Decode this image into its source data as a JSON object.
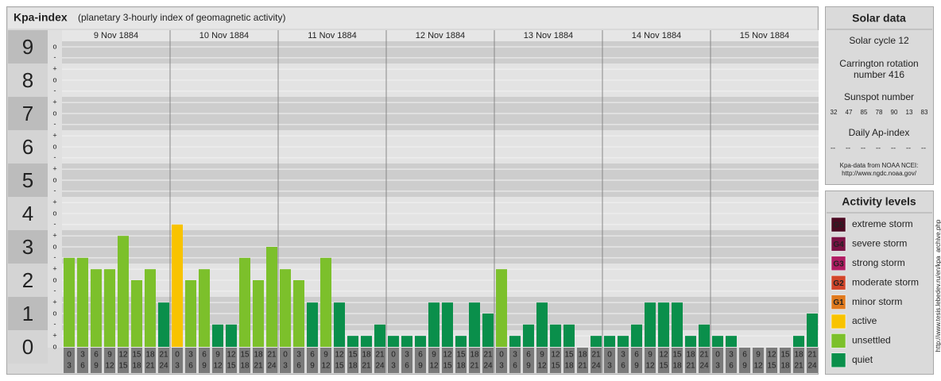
{
  "chart_data": {
    "type": "bar",
    "title": "Kpa-index",
    "subtitle": "(planetary 3-hourly index of geomagnetic activity)",
    "days": [
      "9 Nov 1884",
      "10 Nov 1884",
      "11 Nov 1884",
      "12 Nov 1884",
      "13 Nov 1884",
      "14 Nov 1884",
      "15 Nov 1884"
    ],
    "hours": [
      [
        0,
        3
      ],
      [
        3,
        6
      ],
      [
        6,
        9
      ],
      [
        9,
        12
      ],
      [
        12,
        15
      ],
      [
        15,
        18
      ],
      [
        18,
        21
      ],
      [
        21,
        24
      ]
    ],
    "values": [
      2.67,
      2.67,
      2.33,
      2.33,
      3.33,
      2,
      2.33,
      1.33,
      3.67,
      2,
      2.33,
      0.67,
      0.67,
      2.67,
      2,
      3,
      2.33,
      2,
      1.33,
      2.67,
      1.33,
      0.33,
      0.33,
      0.67,
      0.33,
      0.33,
      0.33,
      1.33,
      1.33,
      0.33,
      1.33,
      1,
      2.33,
      0.33,
      0.67,
      1.33,
      0.67,
      0.67,
      0,
      0.33,
      0.33,
      0.33,
      0.67,
      1.33,
      1.33,
      1.33,
      0.33,
      0.67,
      0.33,
      0.33,
      0,
      0,
      0,
      0,
      0.33,
      1
    ],
    "colors": [
      "#7cc02b",
      "#7cc02b",
      "#7cc02b",
      "#7cc02b",
      "#7cc02b",
      "#7cc02b",
      "#7cc02b",
      "#0a8f4b",
      "#f8c300",
      "#7cc02b",
      "#7cc02b",
      "#0a8f4b",
      "#0a8f4b",
      "#7cc02b",
      "#7cc02b",
      "#7cc02b",
      "#7cc02b",
      "#7cc02b",
      "#0a8f4b",
      "#7cc02b",
      "#0a8f4b",
      "#0a8f4b",
      "#0a8f4b",
      "#0a8f4b",
      "#0a8f4b",
      "#0a8f4b",
      "#0a8f4b",
      "#0a8f4b",
      "#0a8f4b",
      "#0a8f4b",
      "#0a8f4b",
      "#0a8f4b",
      "#7cc02b",
      "#0a8f4b",
      "#0a8f4b",
      "#0a8f4b",
      "#0a8f4b",
      "#0a8f4b",
      "#0a8f4b",
      "#0a8f4b",
      "#0a8f4b",
      "#0a8f4b",
      "#0a8f4b",
      "#0a8f4b",
      "#0a8f4b",
      "#0a8f4b",
      "#0a8f4b",
      "#0a8f4b",
      "#0a8f4b",
      "#0a8f4b",
      "#0a8f4b",
      "#0a8f4b",
      "#0a8f4b",
      "#0a8f4b",
      "#0a8f4b",
      "#0a8f4b"
    ],
    "ylim": [
      0,
      9.5
    ],
    "yticks": [
      0,
      1,
      2,
      3,
      4,
      5,
      6,
      7,
      8,
      9
    ],
    "yticks_minor": [
      {
        "value": 0,
        "label": "o"
      },
      {
        "value": 0.33,
        "label": "+"
      },
      {
        "value": 0.67,
        "label": "-"
      },
      {
        "value": 1,
        "label": "o"
      },
      {
        "value": 1.33,
        "label": "+"
      },
      {
        "value": 1.67,
        "label": "-"
      },
      {
        "value": 2,
        "label": "o"
      },
      {
        "value": 2.33,
        "label": "+"
      },
      {
        "value": 2.67,
        "label": "-"
      },
      {
        "value": 3,
        "label": "o"
      },
      {
        "value": 3.33,
        "label": "+"
      },
      {
        "value": 3.67,
        "label": "-"
      },
      {
        "value": 4,
        "label": "o"
      },
      {
        "value": 4.33,
        "label": "+"
      },
      {
        "value": 4.67,
        "label": "-"
      },
      {
        "value": 5,
        "label": "o"
      },
      {
        "value": 5.33,
        "label": "+"
      },
      {
        "value": 5.67,
        "label": "-"
      },
      {
        "value": 6,
        "label": "o"
      },
      {
        "value": 6.33,
        "label": "+"
      },
      {
        "value": 6.67,
        "label": "-"
      },
      {
        "value": 7,
        "label": "o"
      },
      {
        "value": 7.33,
        "label": "+"
      },
      {
        "value": 7.67,
        "label": "-"
      },
      {
        "value": 8,
        "label": "o"
      },
      {
        "value": 8.33,
        "label": "+"
      },
      {
        "value": 8.67,
        "label": "-"
      },
      {
        "value": 9,
        "label": "o"
      }
    ],
    "grid": true
  },
  "solar_data": {
    "title": "Solar data",
    "solar_cycle": "Solar cycle 12",
    "carrington": [
      "Carrington rotation",
      "number 416"
    ],
    "sunspot_title": "Sunspot number",
    "sunspot": [
      32,
      47,
      85,
      78,
      90,
      13,
      83
    ],
    "ap_title": "Daily Ap-index",
    "ap": [
      "--",
      "--",
      "--",
      "--",
      "--",
      "--",
      "--"
    ],
    "source": "Kpa-data from NOAA NCEI:",
    "source_url": "http://www.ngdc.noaa.gov/"
  },
  "activity_levels": {
    "title": "Activity levels",
    "items": [
      {
        "badge": "G5",
        "label": "extreme storm",
        "color": "#4a0a22"
      },
      {
        "badge": "G4",
        "label": "severe storm",
        "color": "#7a1244"
      },
      {
        "badge": "G3",
        "label": "strong storm",
        "color": "#b01c62"
      },
      {
        "badge": "G2",
        "label": "moderate storm",
        "color": "#d2452a"
      },
      {
        "badge": "G1",
        "label": "minor storm",
        "color": "#e07a1e"
      },
      {
        "label": "active",
        "color": "#f8c300"
      },
      {
        "label": "unsettled",
        "color": "#7cc02b"
      },
      {
        "label": "quiet",
        "color": "#0a8f4b"
      }
    ]
  },
  "watermark": "http://www.tesis.lebedev.ru/en/kpa_archive.php"
}
